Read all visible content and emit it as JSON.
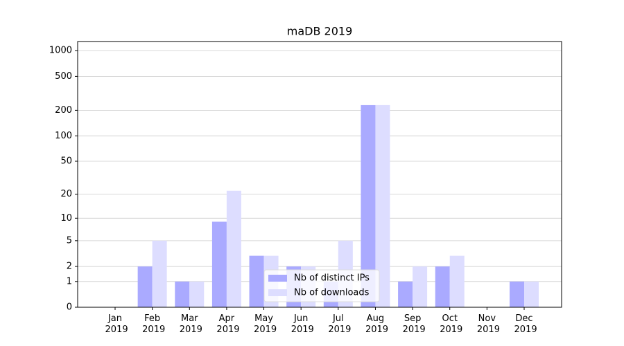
{
  "chart_data": {
    "type": "bar",
    "title": "maDB 2019",
    "categories": [
      "Jan 2019",
      "Feb 2019",
      "Mar 2019",
      "Apr 2019",
      "May 2019",
      "Jun 2019",
      "Jul 2019",
      "Aug 2019",
      "Sep 2019",
      "Oct 2019",
      "Nov 2019",
      "Dec 2019"
    ],
    "series": [
      {
        "name": "Nb of distinct IPs",
        "color": "#aaaaff",
        "values": [
          0,
          2,
          1,
          9,
          3,
          2,
          1,
          230,
          1,
          2,
          0,
          1
        ]
      },
      {
        "name": "Nb of downloads",
        "color": "#ddddff",
        "values": [
          0,
          5,
          1,
          22,
          3,
          2,
          5,
          230,
          2,
          3,
          0,
          1
        ]
      }
    ],
    "yscale": "log1p",
    "ylim": [
      0,
      1280
    ],
    "yticks": [
      0,
      1,
      2,
      5,
      10,
      20,
      50,
      100,
      200,
      500,
      1000
    ],
    "grid": true,
    "legend": "lower center"
  }
}
